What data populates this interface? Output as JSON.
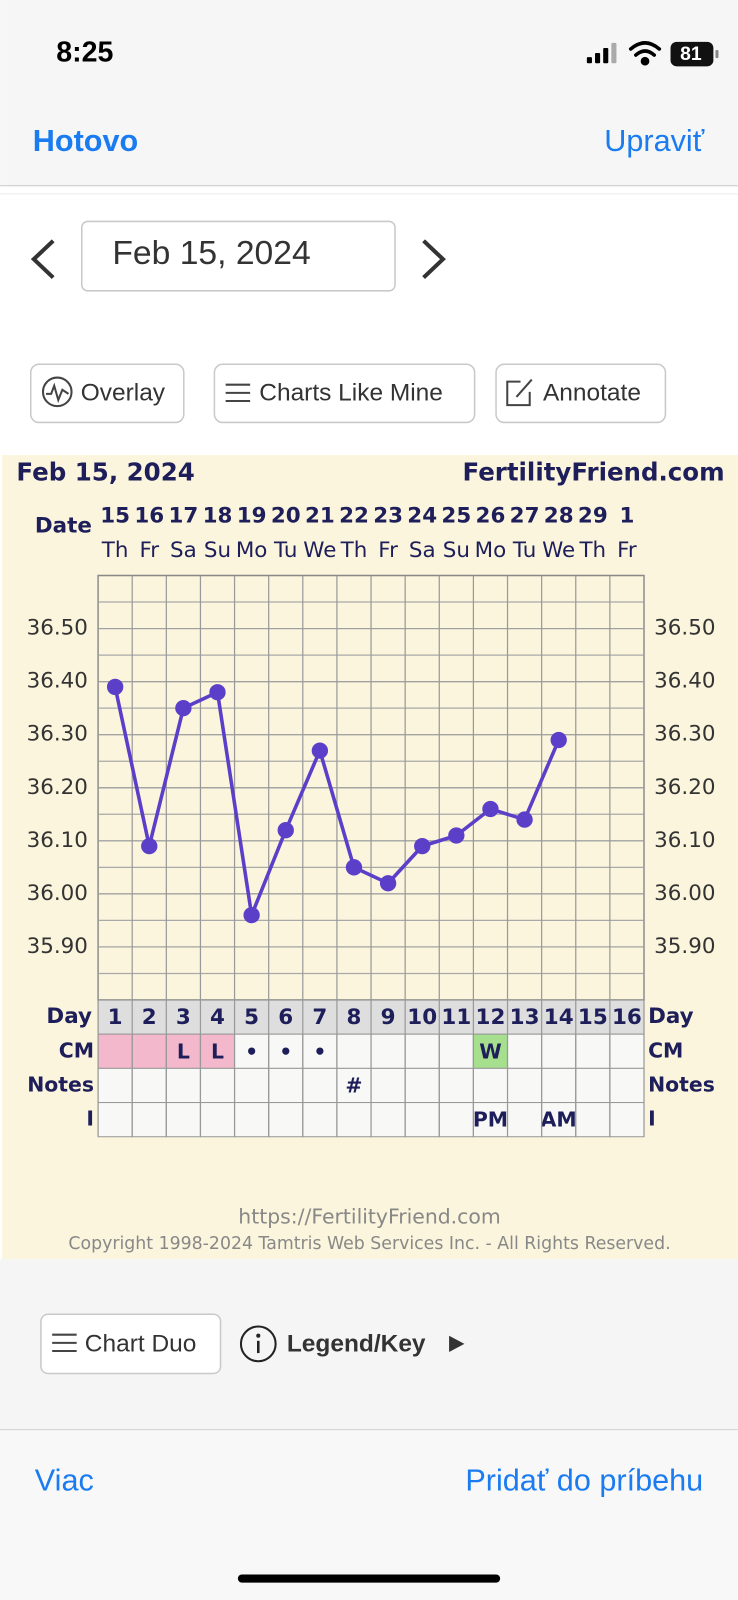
{
  "status_bar": {
    "time": "8:25",
    "battery": "81"
  },
  "nav": {
    "done": "Hotovo",
    "edit": "Upraviť"
  },
  "date_picker": {
    "date": "Feb 15, 2024"
  },
  "toolbar": {
    "buttons": [
      "Overlay",
      "Charts Like Mine",
      "Annotate"
    ]
  },
  "chart_data": {
    "type": "line",
    "title": "Feb 15, 2024",
    "source": "FertilityFriend.com",
    "date_label": "Date",
    "dates": [
      "15",
      "16",
      "17",
      "18",
      "19",
      "20",
      "21",
      "22",
      "23",
      "24",
      "25",
      "26",
      "27",
      "28",
      "29",
      "1"
    ],
    "weekdays": [
      "Th",
      "Fr",
      "Sa",
      "Su",
      "Mo",
      "Tu",
      "We",
      "Th",
      "Fr",
      "Sa",
      "Su",
      "Mo",
      "Tu",
      "We",
      "Th",
      "Fr"
    ],
    "category_label": "Day",
    "categories": [
      "1",
      "2",
      "3",
      "4",
      "5",
      "6",
      "7",
      "8",
      "9",
      "10",
      "11",
      "12",
      "13",
      "14",
      "15",
      "16"
    ],
    "series": [
      {
        "color": "#5b3fc9",
        "values": [
          36.39,
          36.09,
          36.35,
          36.38,
          35.96,
          36.12,
          36.27,
          36.05,
          36.02,
          36.09,
          36.11,
          36.16,
          36.14,
          36.29,
          null,
          null
        ]
      }
    ],
    "ylim": [
      35.8,
      36.6
    ],
    "yticks": [
      {
        "value": 35.9,
        "label": "35.90"
      },
      {
        "value": 36.0,
        "label": "36.00"
      },
      {
        "value": 36.1,
        "label": "36.10"
      },
      {
        "value": 36.2,
        "label": "36.20"
      },
      {
        "value": 36.3,
        "label": "36.30"
      },
      {
        "value": 36.4,
        "label": "36.40"
      },
      {
        "value": 36.5,
        "label": "36.50"
      }
    ],
    "grid": true,
    "rows": [
      {
        "label": "CM",
        "cells": [
          null,
          null,
          "L",
          "L",
          "•",
          "•",
          "•",
          null,
          null,
          null,
          null,
          "W",
          null,
          null,
          null,
          null
        ],
        "colors": [
          "#f4b8cc",
          "#f4b8cc",
          "#f4b8cc",
          "#f4b8cc",
          null,
          null,
          null,
          null,
          null,
          null,
          null,
          "#a6df8e",
          null,
          null,
          null,
          null
        ]
      },
      {
        "label": "Notes",
        "cells": [
          null,
          null,
          null,
          null,
          null,
          null,
          null,
          "#",
          null,
          null,
          null,
          null,
          null,
          null,
          null,
          null
        ]
      },
      {
        "label": "I",
        "cells": [
          null,
          null,
          null,
          null,
          null,
          null,
          null,
          null,
          null,
          null,
          null,
          "PM",
          null,
          "AM",
          null,
          null
        ]
      }
    ]
  },
  "chart_footer": {
    "url": "https://FertilityFriend.com",
    "copyright": "Copyright 1998-2024 Tamtris Web Services Inc. - All Rights Reserved."
  },
  "actions": {
    "chart_duo": "Chart Duo",
    "legend": "Legend/Key"
  },
  "bottom_bar": {
    "more": "Viac",
    "add": "Pridať do príbehu"
  }
}
